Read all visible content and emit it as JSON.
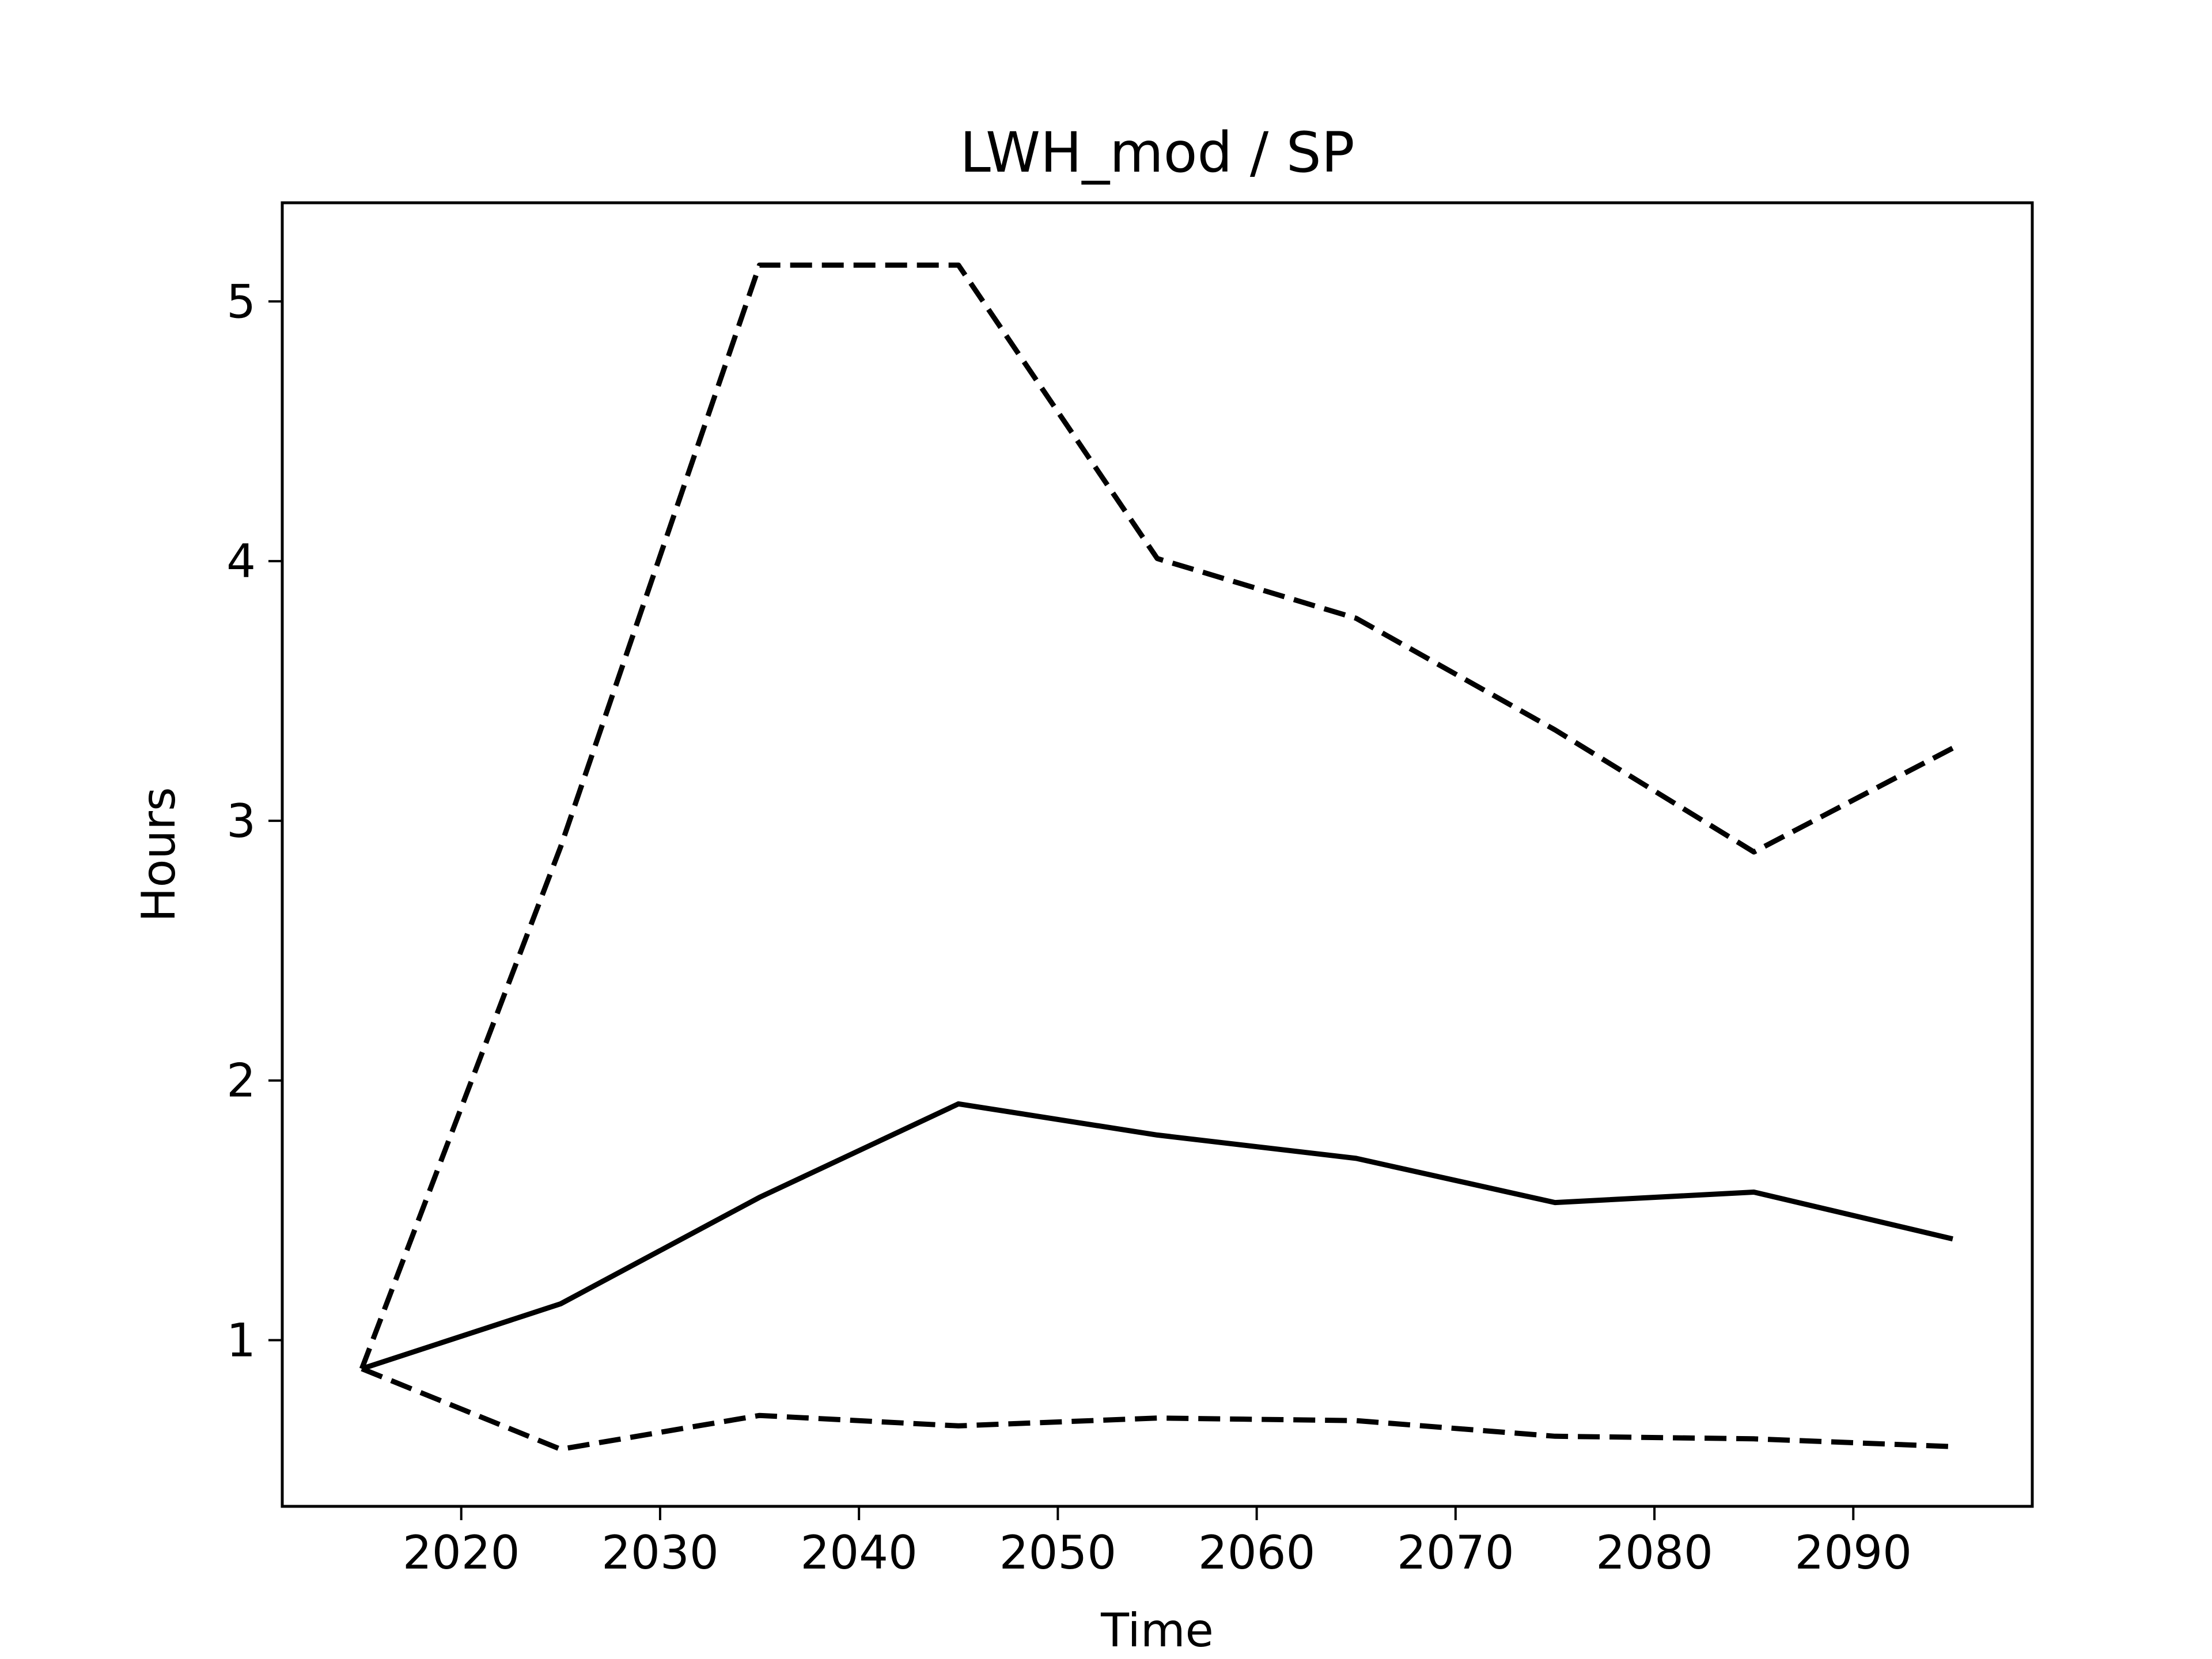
{
  "chart_data": {
    "type": "line",
    "title": "LWH_mod / SP",
    "xlabel": "Time",
    "ylabel": "Hours",
    "xlim": [
      2011,
      2099
    ],
    "ylim": [
      0.36,
      5.38
    ],
    "x_ticks": [
      2020,
      2030,
      2040,
      2050,
      2060,
      2070,
      2080,
      2090
    ],
    "y_ticks": [
      1,
      2,
      3,
      4,
      5
    ],
    "grid": false,
    "legend": "none",
    "x": [
      2015,
      2025,
      2035,
      2045,
      2055,
      2065,
      2075,
      2085,
      2095
    ],
    "series": [
      {
        "style": "solid",
        "color": "#000000",
        "values": [
          0.89,
          1.14,
          1.55,
          1.91,
          1.79,
          1.7,
          1.53,
          1.57,
          1.39
        ]
      },
      {
        "style": "dashed",
        "color": "#000000",
        "values": [
          0.89,
          2.9,
          5.14,
          5.14,
          4.01,
          3.78,
          3.35,
          2.88,
          3.28
        ]
      },
      {
        "style": "dashed",
        "color": "#000000",
        "values": [
          0.89,
          0.58,
          0.71,
          0.67,
          0.7,
          0.69,
          0.63,
          0.62,
          0.59
        ]
      }
    ]
  }
}
